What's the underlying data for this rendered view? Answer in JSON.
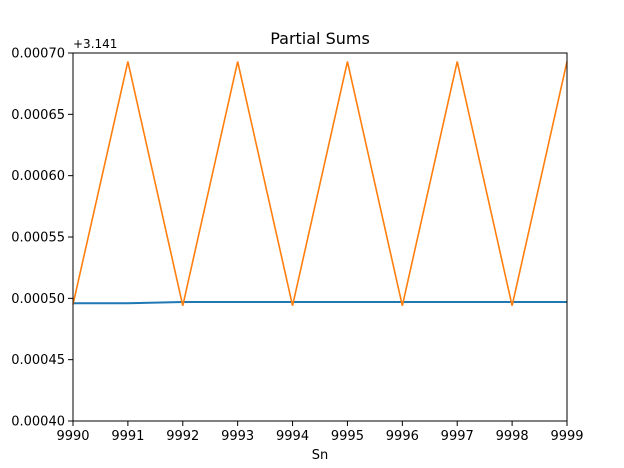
{
  "chart_data": {
    "type": "line",
    "title": "Partial Sums",
    "xlabel": "Sn",
    "ylabel": "",
    "offset_label": "+3.141",
    "xlim": [
      9990,
      9999
    ],
    "ylim": [
      0.0004,
      0.0007
    ],
    "x_ticks": [
      "9990",
      "9991",
      "9992",
      "9993",
      "9994",
      "9995",
      "9996",
      "9997",
      "9998",
      "9999"
    ],
    "y_ticks": [
      "0.00040",
      "0.00045",
      "0.00050",
      "0.00055",
      "0.00060",
      "0.00065",
      "0.00070"
    ],
    "x": [
      9990,
      9991,
      9992,
      9993,
      9994,
      9995,
      9996,
      9997,
      9998,
      9999
    ],
    "series": [
      {
        "color": "#1f77b4",
        "values": [
          0.000496,
          0.000496,
          0.000497,
          0.000497,
          0.000497,
          0.000497,
          0.000497,
          0.000497,
          0.000497,
          0.000497
        ]
      },
      {
        "color": "#ff7f0e",
        "values": [
          0.000495,
          0.000693,
          0.000494,
          0.000693,
          0.000494,
          0.000693,
          0.000494,
          0.000693,
          0.000494,
          0.000693
        ]
      }
    ],
    "grid": false,
    "legend": "none"
  }
}
